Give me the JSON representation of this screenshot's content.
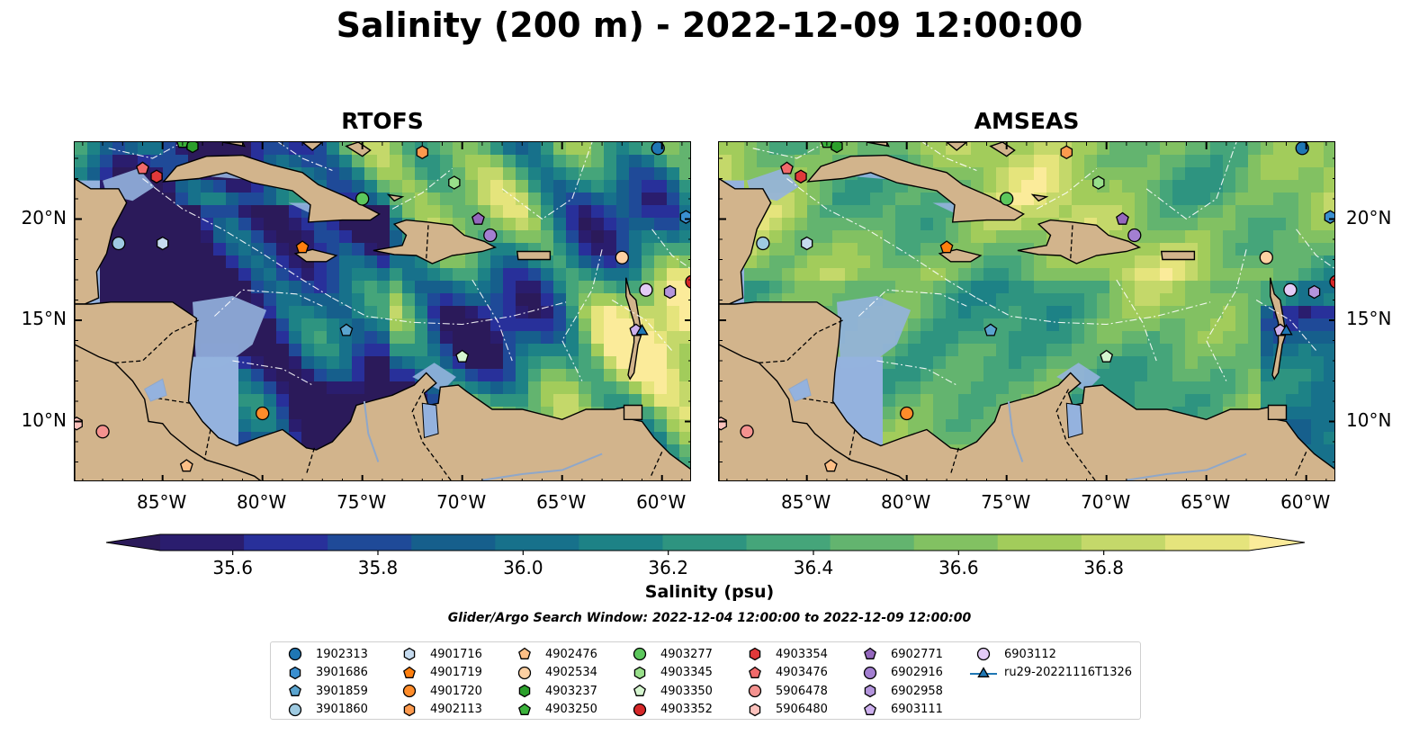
{
  "title": "Salinity (200 m) - 2022-12-09 12:00:00",
  "panels": [
    {
      "title": "RTOFS",
      "model": "rtofs"
    },
    {
      "title": "AMSEAS",
      "model": "amseas"
    }
  ],
  "map": {
    "lon_range": [
      -89.4,
      -58.5
    ],
    "lat_range": [
      7.0,
      23.8
    ],
    "lon_ticks": [
      "85°W",
      "80°W",
      "75°W",
      "70°W",
      "65°W",
      "60°W"
    ],
    "lon_tick_values": [
      -85,
      -80,
      -75,
      -70,
      -65,
      -60
    ],
    "lat_ticks": [
      "20°N",
      "15°N",
      "10°N"
    ],
    "lat_tick_values": [
      20,
      15,
      10
    ],
    "land_color": "#d2b48c",
    "ocean_color": "#94b2de"
  },
  "colorbar": {
    "label": "Salinity (psu)",
    "min": 35.5,
    "max": 37.0,
    "step": 0.1,
    "ticks": [
      "35.6",
      "35.8",
      "36.0",
      "36.2",
      "36.4",
      "36.6",
      "36.8"
    ],
    "tick_values": [
      35.6,
      35.8,
      36.0,
      36.2,
      36.4,
      36.6,
      36.8
    ],
    "colors": [
      "#2a1d6e",
      "#28309a",
      "#1f4a98",
      "#165f8c",
      "#17718b",
      "#1d8286",
      "#2e9480",
      "#45a57a",
      "#63b46f",
      "#82c162",
      "#a2cc5b",
      "#c4d86a",
      "#e5e47c"
    ],
    "under_color": "#2b1a5a",
    "over_color": "#fbeb9a"
  },
  "search_window": "Glider/Argo Search Window: 2022-12-04 12:00:00 to 2022-12-09 12:00:00",
  "legend": [
    {
      "label": "1902313",
      "marker": "circle",
      "color": "#1f77b4",
      "lon": -60.2,
      "lat": 23.5
    },
    {
      "label": "3901686",
      "marker": "hexagon",
      "color": "#3a8fd0",
      "lon": -58.8,
      "lat": 20.1
    },
    {
      "label": "3901859",
      "marker": "pentagon",
      "color": "#5aa4cf",
      "lon": -75.8,
      "lat": 14.5
    },
    {
      "label": "3901860",
      "marker": "circle",
      "color": "#9ecae1",
      "lon": -87.2,
      "lat": 18.8
    },
    {
      "label": "4901716",
      "marker": "hexagon",
      "color": "#c6dbef",
      "lon": -85.0,
      "lat": 18.8
    },
    {
      "label": "4901719",
      "marker": "pentagon",
      "color": "#ff7f0e",
      "lon": -78.0,
      "lat": 18.6
    },
    {
      "label": "4901720",
      "marker": "circle",
      "color": "#ff8c2a",
      "lon": -80.0,
      "lat": 10.4
    },
    {
      "label": "4902113",
      "marker": "hexagon",
      "color": "#fd9a4e",
      "lon": -72.0,
      "lat": 23.3
    },
    {
      "label": "4902476",
      "marker": "pentagon",
      "color": "#fdbf86",
      "lon": -83.8,
      "lat": 7.8
    },
    {
      "label": "4902534",
      "marker": "circle",
      "color": "#fdd0a2",
      "lon": -62.0,
      "lat": 18.1
    },
    {
      "label": "4903237",
      "marker": "hexagon",
      "color": "#2ca02c",
      "lon": -83.5,
      "lat": 23.6
    },
    {
      "label": "4903250",
      "marker": "pentagon",
      "color": "#3bb23b",
      "lon": -84.0,
      "lat": 23.8
    },
    {
      "label": "4903277",
      "marker": "circle",
      "color": "#5cc75c",
      "lon": -75.0,
      "lat": 21.0
    },
    {
      "label": "4903345",
      "marker": "hexagon",
      "color": "#98df8a",
      "lon": -70.4,
      "lat": 21.8
    },
    {
      "label": "4903350",
      "marker": "pentagon",
      "color": "#d5f5cf",
      "lon": -70.0,
      "lat": 13.2
    },
    {
      "label": "4903352",
      "marker": "circle",
      "color": "#d62728",
      "lon": -58.5,
      "lat": 16.9
    },
    {
      "label": "4903354",
      "marker": "hexagon",
      "color": "#e0393a",
      "lon": -85.3,
      "lat": 22.1
    },
    {
      "label": "4903476",
      "marker": "pentagon",
      "color": "#f06a6b",
      "lon": -86.0,
      "lat": 22.5
    },
    {
      "label": "5906478",
      "marker": "circle",
      "color": "#f4928f",
      "lon": -88.0,
      "lat": 9.5
    },
    {
      "label": "5906480",
      "marker": "hexagon",
      "color": "#fbc1bc",
      "lon": -89.3,
      "lat": 9.9
    },
    {
      "label": "6902771",
      "marker": "pentagon",
      "color": "#9467bd",
      "lon": -69.2,
      "lat": 20.0
    },
    {
      "label": "6902916",
      "marker": "circle",
      "color": "#a37fd1",
      "lon": -68.6,
      "lat": 19.2
    },
    {
      "label": "6902958",
      "marker": "hexagon",
      "color": "#b394dc",
      "lon": -59.6,
      "lat": 16.4
    },
    {
      "label": "6903111",
      "marker": "pentagon",
      "color": "#cdb0ee",
      "lon": -61.3,
      "lat": 14.5
    },
    {
      "label": "6903112",
      "marker": "circle",
      "color": "#e3cbf7",
      "lon": -60.8,
      "lat": 16.5
    },
    {
      "label": "ru29-20221116T1326",
      "marker": "triangle-line",
      "color": "#1f77b4",
      "lon": -61.0,
      "lat": 14.5
    }
  ]
}
